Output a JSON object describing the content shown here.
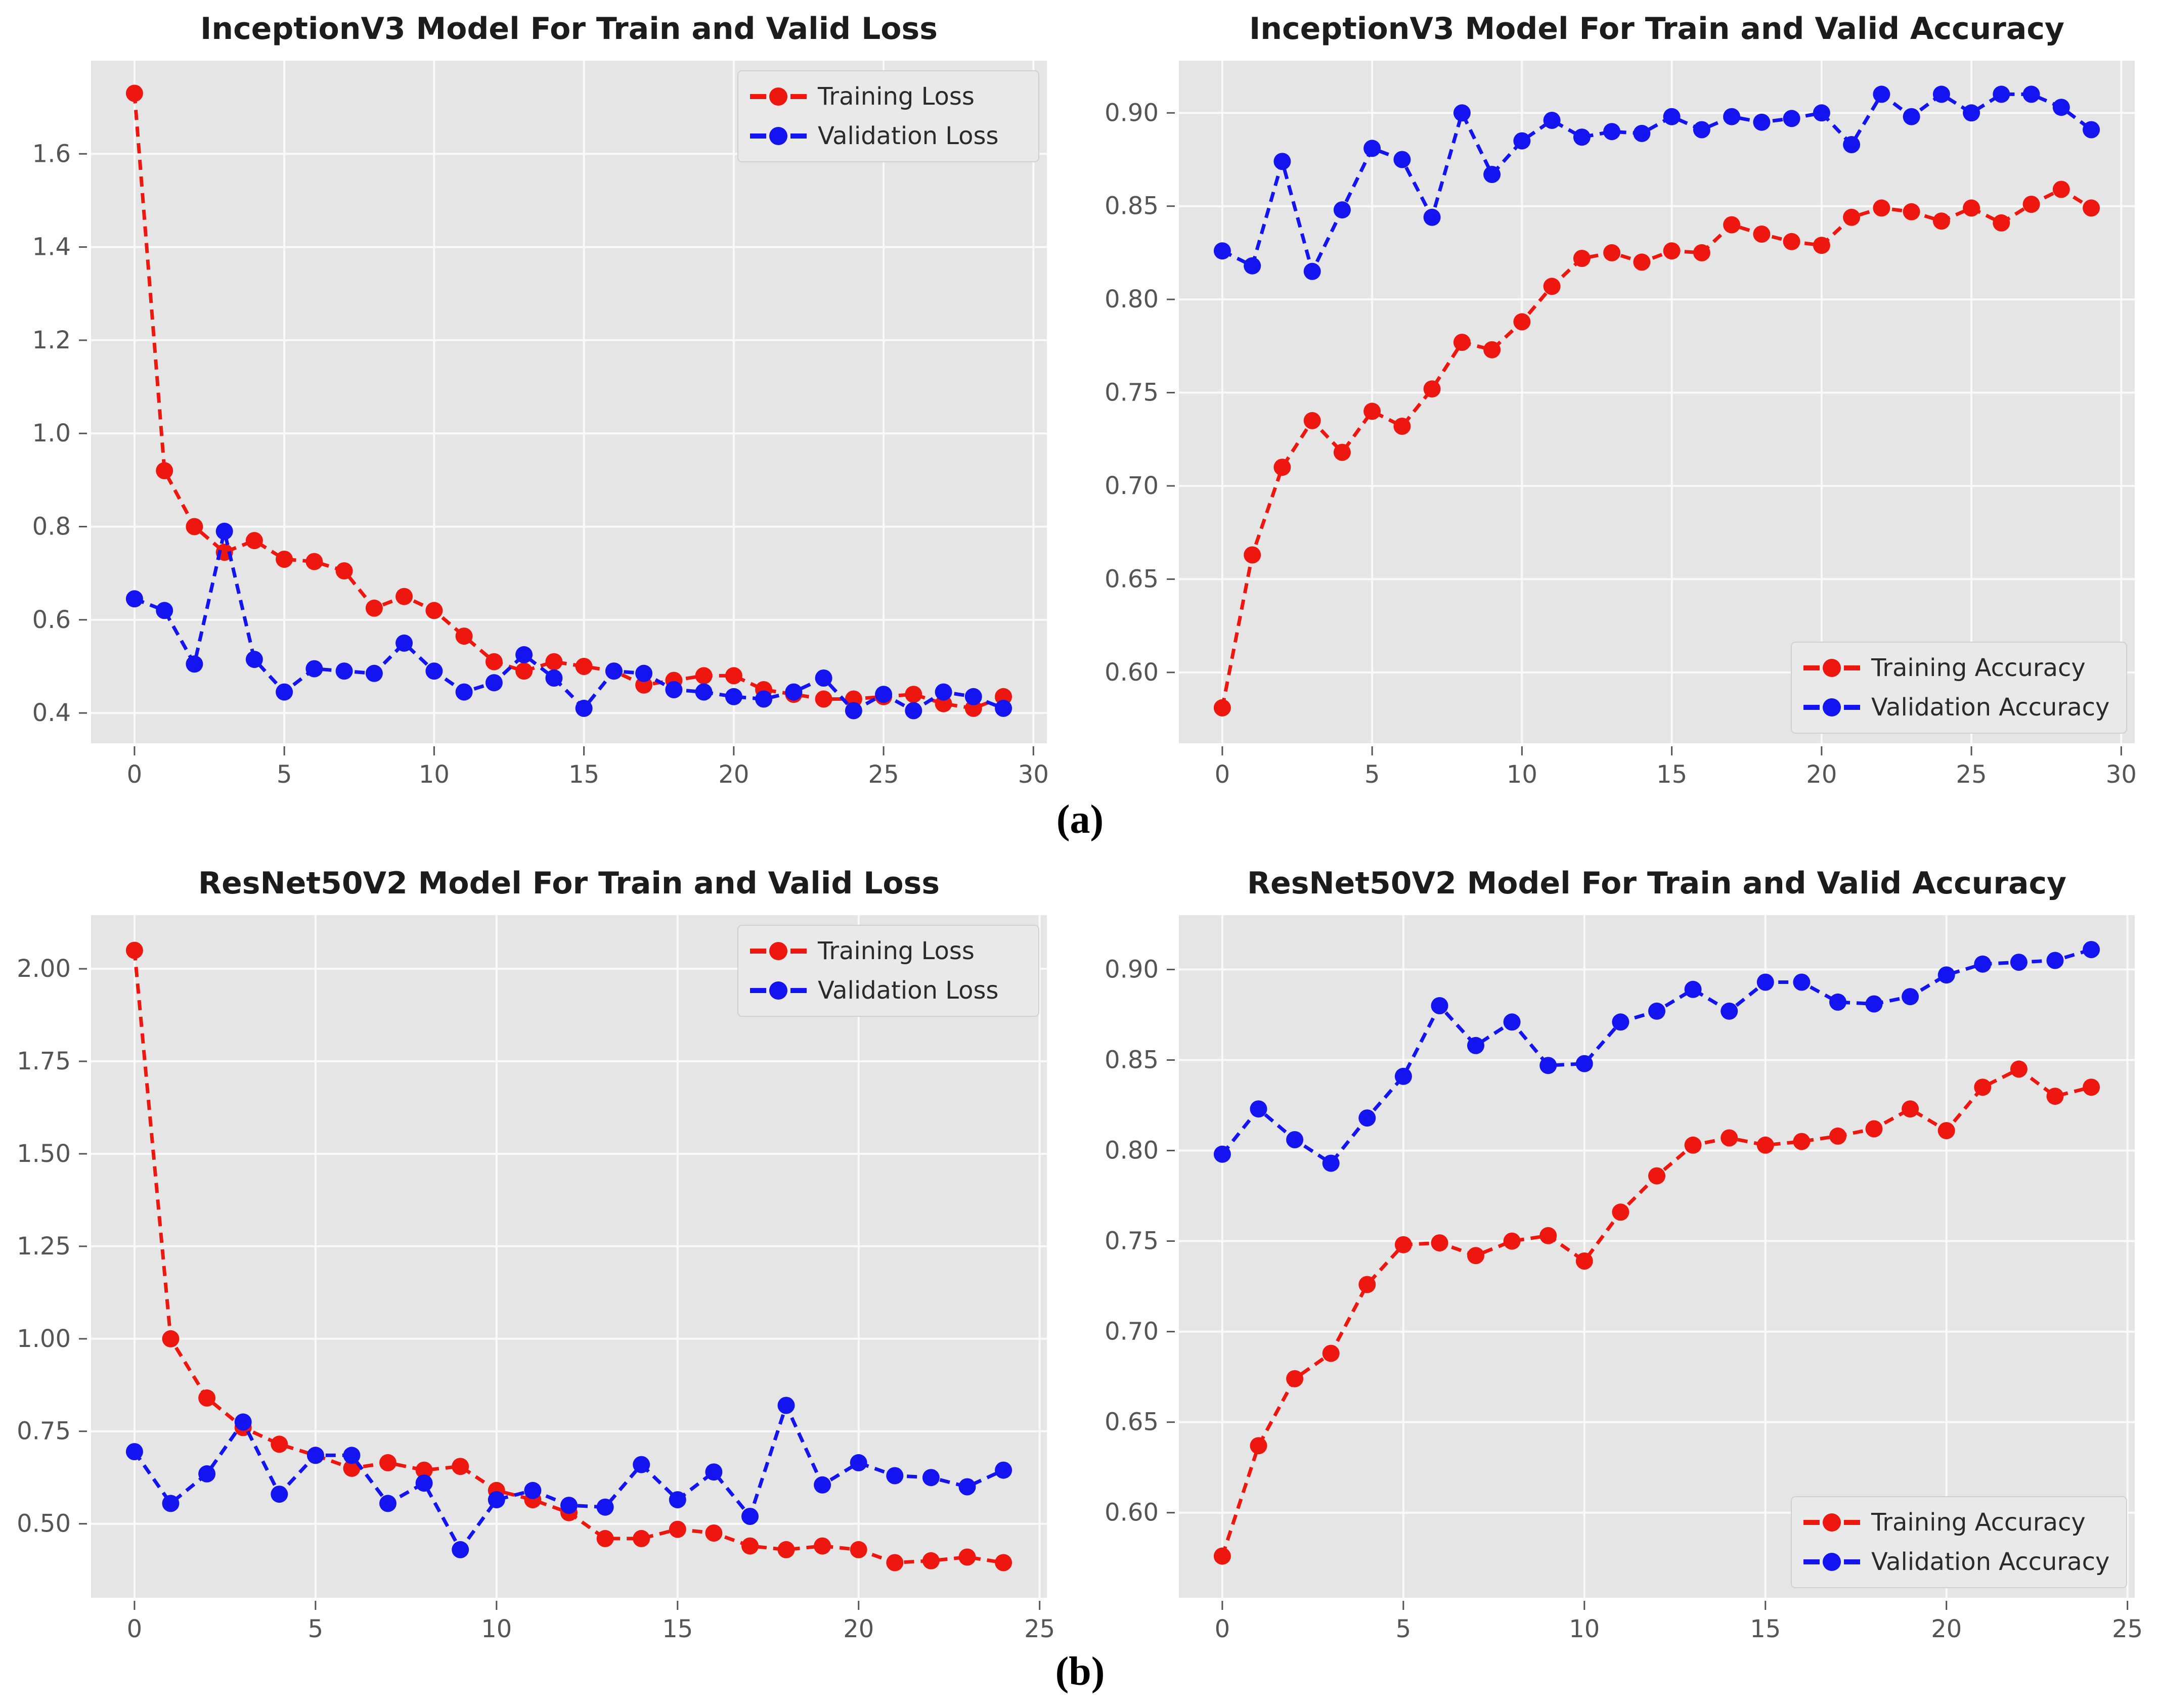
{
  "figure": {
    "captions": {
      "a": "(a)",
      "b": "(b)"
    }
  },
  "style": {
    "page_bg": "#ffffff",
    "plot_bg": "#e5e5e5",
    "grid_color": "#f9f9f9",
    "title_color": "#1c1c1c",
    "tick_color": "#555555",
    "legend_bg": "#e9e9e9",
    "legend_border": "#d0d0d0",
    "legend_text": "#2a2a2a",
    "training_color": "#ed170f",
    "validation_color": "#1414f0"
  },
  "chart_data": [
    {
      "type": "line",
      "title": "InceptionV3 Model For Train and Valid Loss",
      "xlabel": "",
      "ylabel": "",
      "x": {
        "start": 0,
        "step": 1
      },
      "xlim": [
        -1.45,
        30.45
      ],
      "ylim": [
        0.335,
        1.8
      ],
      "xticks": [
        0,
        5,
        10,
        15,
        20,
        25,
        30
      ],
      "xtick_labels": [
        "0",
        "5",
        "10",
        "15",
        "20",
        "25",
        "30"
      ],
      "yticks": [
        0.4,
        0.6,
        0.8,
        1.0,
        1.2,
        1.4,
        1.6
      ],
      "ytick_labels": [
        "0.4",
        "0.6",
        "0.8",
        "1.0",
        "1.2",
        "1.4",
        "1.6"
      ],
      "grid": true,
      "legend": {
        "position": "upper-right",
        "entries": [
          {
            "label": "Training Loss",
            "color": "#ed170f"
          },
          {
            "label": "Validation Loss",
            "color": "#1414f0"
          }
        ]
      },
      "series": [
        {
          "name": "Training Loss",
          "color": "#ed170f",
          "values": [
            1.73,
            0.92,
            0.8,
            0.745,
            0.77,
            0.73,
            0.725,
            0.705,
            0.625,
            0.65,
            0.62,
            0.565,
            0.51,
            0.49,
            0.51,
            0.5,
            0.49,
            0.46,
            0.47,
            0.48,
            0.48,
            0.45,
            0.44,
            0.43,
            0.43,
            0.435,
            0.44,
            0.42,
            0.41,
            0.435
          ]
        },
        {
          "name": "Validation Loss",
          "color": "#1414f0",
          "values": [
            0.645,
            0.62,
            0.505,
            0.79,
            0.515,
            0.445,
            0.495,
            0.49,
            0.485,
            0.55,
            0.49,
            0.445,
            0.465,
            0.525,
            0.475,
            0.41,
            0.49,
            0.485,
            0.45,
            0.445,
            0.435,
            0.43,
            0.445,
            0.475,
            0.405,
            0.44,
            0.405,
            0.445,
            0.435,
            0.41
          ]
        }
      ]
    },
    {
      "type": "line",
      "title": "InceptionV3 Model For Train and Valid Accuracy",
      "xlabel": "",
      "ylabel": "",
      "x": {
        "start": 0,
        "step": 1
      },
      "xlim": [
        -1.45,
        30.45
      ],
      "ylim": [
        0.562,
        0.928
      ],
      "xticks": [
        0,
        5,
        10,
        15,
        20,
        25,
        30
      ],
      "xtick_labels": [
        "0",
        "5",
        "10",
        "15",
        "20",
        "25",
        "30"
      ],
      "yticks": [
        0.6,
        0.65,
        0.7,
        0.75,
        0.8,
        0.85,
        0.9
      ],
      "ytick_labels": [
        "0.60",
        "0.65",
        "0.70",
        "0.75",
        "0.80",
        "0.85",
        "0.90"
      ],
      "grid": true,
      "legend": {
        "position": "lower-right",
        "entries": [
          {
            "label": "Training Accuracy",
            "color": "#ed170f"
          },
          {
            "label": "Validation Accuracy",
            "color": "#1414f0"
          }
        ]
      },
      "series": [
        {
          "name": "Training Accuracy",
          "color": "#ed170f",
          "values": [
            0.581,
            0.663,
            0.71,
            0.735,
            0.718,
            0.74,
            0.732,
            0.752,
            0.777,
            0.773,
            0.788,
            0.807,
            0.822,
            0.825,
            0.82,
            0.826,
            0.825,
            0.84,
            0.835,
            0.831,
            0.829,
            0.844,
            0.849,
            0.847,
            0.842,
            0.849,
            0.841,
            0.851,
            0.859,
            0.849
          ]
        },
        {
          "name": "Validation Accuracy",
          "color": "#1414f0",
          "values": [
            0.826,
            0.818,
            0.874,
            0.815,
            0.848,
            0.881,
            0.875,
            0.844,
            0.9,
            0.867,
            0.885,
            0.896,
            0.887,
            0.89,
            0.889,
            0.898,
            0.891,
            0.898,
            0.895,
            0.897,
            0.9,
            0.883,
            0.91,
            0.898,
            0.91,
            0.9,
            0.91,
            0.91,
            0.903,
            0.891
          ]
        }
      ]
    },
    {
      "type": "line",
      "title": "ResNet50V2 Model For Train and Valid Loss",
      "xlabel": "",
      "ylabel": "",
      "x": {
        "start": 0,
        "step": 1
      },
      "xlim": [
        -1.2,
        25.2
      ],
      "ylim": [
        0.3,
        2.145
      ],
      "xticks": [
        0,
        5,
        10,
        15,
        20,
        25
      ],
      "xtick_labels": [
        "0",
        "5",
        "10",
        "15",
        "20",
        "25"
      ],
      "yticks": [
        0.5,
        0.75,
        1.0,
        1.25,
        1.5,
        1.75,
        2.0
      ],
      "ytick_labels": [
        "0.50",
        "0.75",
        "1.00",
        "1.25",
        "1.50",
        "1.75",
        "2.00"
      ],
      "grid": true,
      "legend": {
        "position": "upper-right",
        "entries": [
          {
            "label": "Training Loss",
            "color": "#ed170f"
          },
          {
            "label": "Validation Loss",
            "color": "#1414f0"
          }
        ]
      },
      "series": [
        {
          "name": "Training Loss",
          "color": "#ed170f",
          "values": [
            2.05,
            1.0,
            0.84,
            0.76,
            0.715,
            0.685,
            0.65,
            0.665,
            0.645,
            0.655,
            0.59,
            0.565,
            0.53,
            0.46,
            0.46,
            0.485,
            0.475,
            0.44,
            0.43,
            0.44,
            0.43,
            0.395,
            0.4,
            0.41,
            0.395
          ]
        },
        {
          "name": "Validation Loss",
          "color": "#1414f0",
          "values": [
            0.695,
            0.555,
            0.635,
            0.775,
            0.58,
            0.685,
            0.685,
            0.555,
            0.61,
            0.43,
            0.565,
            0.59,
            0.55,
            0.545,
            0.66,
            0.565,
            0.64,
            0.52,
            0.82,
            0.605,
            0.665,
            0.63,
            0.625,
            0.6,
            0.645
          ]
        }
      ]
    },
    {
      "type": "line",
      "title": "ResNet50V2 Model For Train and Valid Accuracy",
      "xlabel": "",
      "ylabel": "",
      "x": {
        "start": 0,
        "step": 1
      },
      "xlim": [
        -1.2,
        25.2
      ],
      "ylim": [
        0.553,
        0.93
      ],
      "xticks": [
        0,
        5,
        10,
        15,
        20,
        25
      ],
      "xtick_labels": [
        "0",
        "5",
        "10",
        "15",
        "20",
        "25"
      ],
      "yticks": [
        0.6,
        0.65,
        0.7,
        0.75,
        0.8,
        0.85,
        0.9
      ],
      "ytick_labels": [
        "0.60",
        "0.65",
        "0.70",
        "0.75",
        "0.80",
        "0.85",
        "0.90"
      ],
      "grid": true,
      "legend": {
        "position": "lower-right",
        "entries": [
          {
            "label": "Training Accuracy",
            "color": "#ed170f"
          },
          {
            "label": "Validation Accuracy",
            "color": "#1414f0"
          }
        ]
      },
      "series": [
        {
          "name": "Training Accuracy",
          "color": "#ed170f",
          "values": [
            0.576,
            0.637,
            0.674,
            0.688,
            0.726,
            0.748,
            0.749,
            0.742,
            0.75,
            0.753,
            0.739,
            0.766,
            0.786,
            0.803,
            0.807,
            0.803,
            0.805,
            0.808,
            0.812,
            0.823,
            0.811,
            0.835,
            0.845,
            0.83,
            0.835
          ]
        },
        {
          "name": "Validation Accuracy",
          "color": "#1414f0",
          "values": [
            0.798,
            0.823,
            0.806,
            0.793,
            0.818,
            0.841,
            0.88,
            0.858,
            0.871,
            0.847,
            0.848,
            0.871,
            0.877,
            0.889,
            0.877,
            0.893,
            0.893,
            0.882,
            0.881,
            0.885,
            0.897,
            0.903,
            0.904,
            0.905,
            0.911
          ]
        }
      ]
    }
  ]
}
